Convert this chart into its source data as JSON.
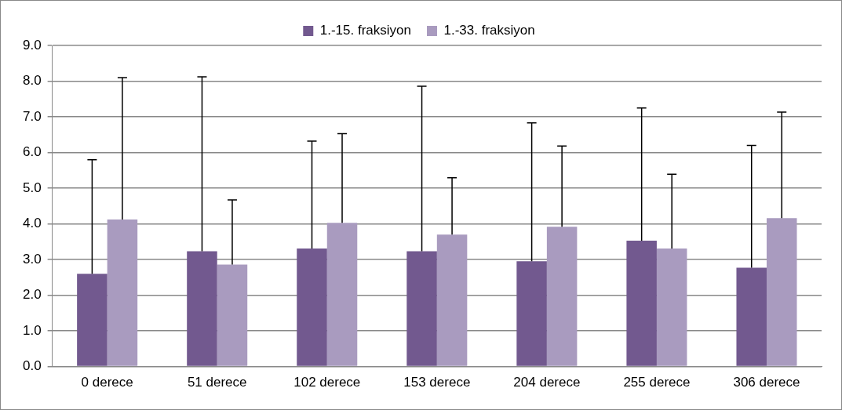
{
  "chart_data": {
    "type": "bar",
    "categories": [
      "0 derece",
      "51 derece",
      "102 derece",
      "153 derece",
      "204 derece",
      "255 derece",
      "306 derece"
    ],
    "series": [
      {
        "name": "1.-15. fraksiyon",
        "color": "#72598f",
        "values": [
          2.6,
          3.23,
          3.31,
          3.23,
          2.95,
          3.53,
          2.77
        ],
        "errors": [
          [
            2.6,
            5.8
          ],
          [
            3.23,
            8.12
          ],
          [
            3.31,
            6.32
          ],
          [
            3.23,
            7.86
          ],
          [
            2.95,
            6.83
          ],
          [
            3.53,
            7.25
          ],
          [
            2.77,
            6.2
          ]
        ]
      },
      {
        "name": "1.-33. fraksiyon",
        "color": "#a99bbf",
        "values": [
          4.12,
          2.86,
          4.03,
          3.7,
          3.92,
          3.31,
          4.16
        ],
        "errors": [
          [
            4.12,
            8.1
          ],
          [
            2.86,
            4.67
          ],
          [
            4.03,
            6.53
          ],
          [
            3.7,
            5.29
          ],
          [
            3.92,
            6.18
          ],
          [
            3.31,
            5.39
          ],
          [
            4.16,
            7.13
          ]
        ]
      }
    ],
    "ylim": [
      0,
      9
    ],
    "yticks": [
      {
        "value": 0,
        "label": "0.0"
      },
      {
        "value": 1,
        "label": "1.0"
      },
      {
        "value": 2,
        "label": "2.0"
      },
      {
        "value": 3,
        "label": "3.0"
      },
      {
        "value": 4,
        "label": "4.0"
      },
      {
        "value": 5,
        "label": "5.0"
      },
      {
        "value": 6,
        "label": "6.0"
      },
      {
        "value": 7,
        "label": "7.0"
      },
      {
        "value": 8,
        "label": "8.0"
      },
      {
        "value": 9,
        "label": "9.0"
      }
    ],
    "grid": "y",
    "legend": "top"
  }
}
